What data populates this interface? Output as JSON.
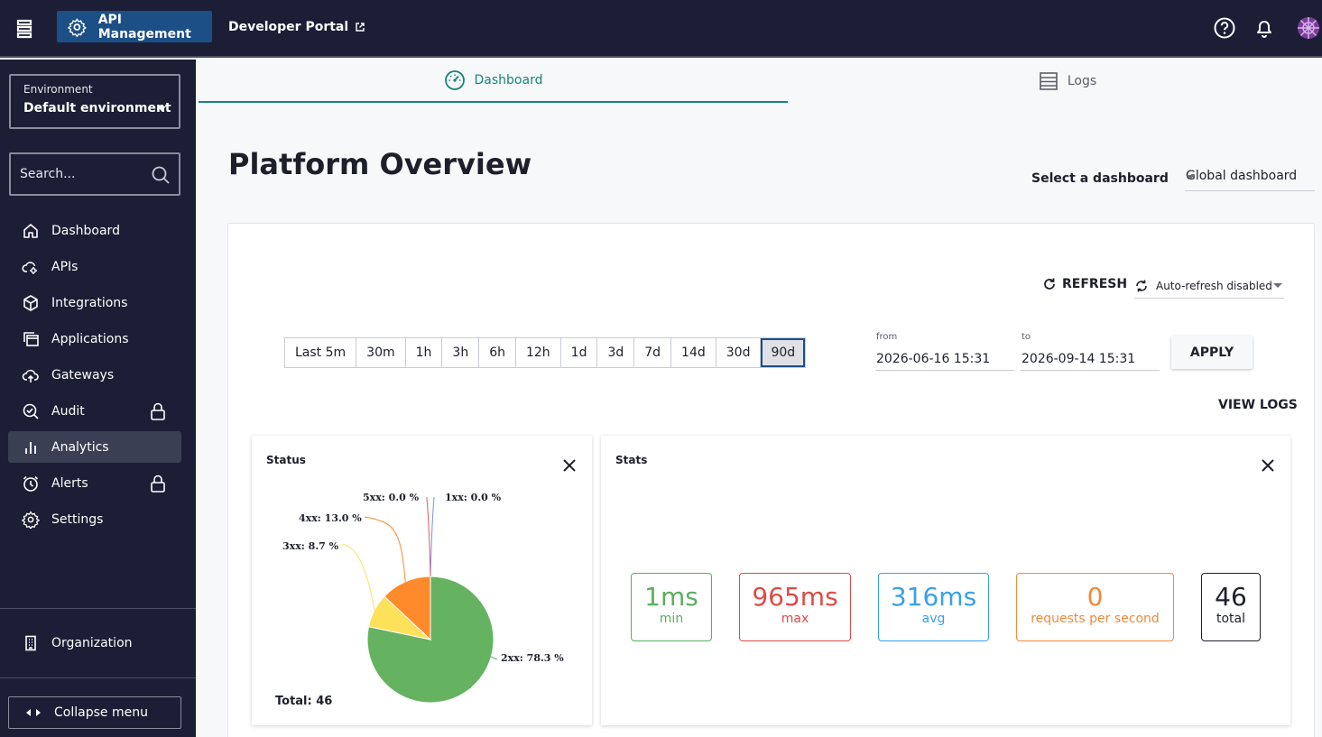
{
  "topbar": {
    "app_name": "API Management",
    "developer_portal": "Developer Portal"
  },
  "sidebar": {
    "environment_label": "Environment",
    "environment_value": "Default environment",
    "search_placeholder": "Search...",
    "items": [
      {
        "label": "Dashboard",
        "icon": "home-icon"
      },
      {
        "label": "APIs",
        "icon": "cloud-gear-icon"
      },
      {
        "label": "Integrations",
        "icon": "cube-icon"
      },
      {
        "label": "Applications",
        "icon": "stacked-windows-icon"
      },
      {
        "label": "Gateways",
        "icon": "cloud-upload-icon"
      },
      {
        "label": "Audit",
        "icon": "search-check-icon",
        "locked": true
      },
      {
        "label": "Analytics",
        "icon": "bar-chart-icon",
        "active": true
      },
      {
        "label": "Alerts",
        "icon": "alarm-clock-icon",
        "locked": true
      },
      {
        "label": "Settings",
        "icon": "gear-icon"
      }
    ],
    "organization": "Organization",
    "collapse": "Collapse menu"
  },
  "tabs": {
    "dashboard": "Dashboard",
    "logs": "Logs"
  },
  "page": {
    "title": "Platform Overview",
    "select_label": "Select a dashboard",
    "select_value": "Global dashboard"
  },
  "toolbar": {
    "refresh": "REFRESH",
    "auto_refresh": "Auto-refresh disabled",
    "ranges": [
      "Last 5m",
      "30m",
      "1h",
      "3h",
      "6h",
      "12h",
      "1d",
      "3d",
      "7d",
      "14d",
      "30d",
      "90d"
    ],
    "selected_range": "90d",
    "from_label": "from",
    "from_value": "2026-06-16 15:31",
    "to_label": "to",
    "to_value": "2026-09-14 15:31",
    "apply": "APPLY",
    "view_logs": "VIEW LOGS"
  },
  "status_card": {
    "title": "Status",
    "total_label": "Total: 46"
  },
  "chart_data": {
    "type": "pie",
    "title": "Status",
    "categories": [
      "1xx",
      "2xx",
      "3xx",
      "4xx",
      "5xx"
    ],
    "values": [
      0.0,
      78.3,
      8.7,
      13.0,
      0.0
    ],
    "labels": [
      "1xx: 0.0 %",
      "2xx: 78.3 %",
      "3xx: 8.7 %",
      "4xx: 13.0 %",
      "5xx: 0.0 %"
    ],
    "colors": [
      "#7b8ff0",
      "#65b360",
      "#fde15b",
      "#ff8a2c",
      "#e45a5a"
    ],
    "total": 46
  },
  "stats_card": {
    "title": "Stats",
    "items": [
      {
        "value": "1ms",
        "label": "min",
        "color": "#5cae5d"
      },
      {
        "value": "965ms",
        "label": "max",
        "color": "#e04a45"
      },
      {
        "value": "316ms",
        "label": "avg",
        "color": "#3aa0e8"
      },
      {
        "value": "0",
        "label": "requests per second",
        "color": "#f28a3c"
      },
      {
        "value": "46",
        "label": "total",
        "color": "#1d1f2b"
      }
    ]
  }
}
